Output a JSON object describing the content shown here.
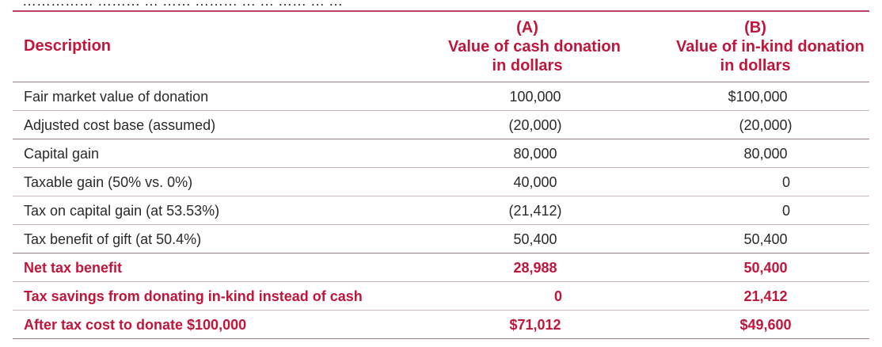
{
  "top_fragment": "…………… ……… … …… ……… … … …… … …",
  "header": {
    "description": "Description",
    "col_a": {
      "letter": "(A)",
      "line1": "Value of cash donation",
      "line2": "in dollars"
    },
    "col_b": {
      "letter": "(B)",
      "line1": "Value of in-kind donation",
      "line2": "in dollars"
    }
  },
  "rows": [
    {
      "label": "Fair market value of donation",
      "a": "100,000",
      "b": "$100,000"
    },
    {
      "label": "Adjusted cost base (assumed)",
      "a": "(20,000)",
      "b": "(20,000)"
    },
    {
      "label": "Capital gain",
      "a": "80,000",
      "b": "80,000"
    },
    {
      "label": "Taxable gain (50% vs. 0%)",
      "a": "40,000",
      "b": "0"
    },
    {
      "label": "Tax on capital gain (at 53.53%)",
      "a": "(21,412)",
      "b": "0"
    },
    {
      "label": "Tax benefit of gift (at 50.4%)",
      "a": "50,400",
      "b": "50,400"
    },
    {
      "label": "Net tax benefit",
      "a": "28,988",
      "b": "50,400"
    },
    {
      "label": "Tax savings from donating in-kind instead of cash",
      "a": "0",
      "b": "21,412"
    },
    {
      "label": "After tax cost to donate $100,000",
      "a": "$71,012",
      "b": "$49,600"
    }
  ],
  "colors": {
    "accent": "#c0163c",
    "text": "#2a2a2a",
    "rule": "#c8b7bd"
  }
}
